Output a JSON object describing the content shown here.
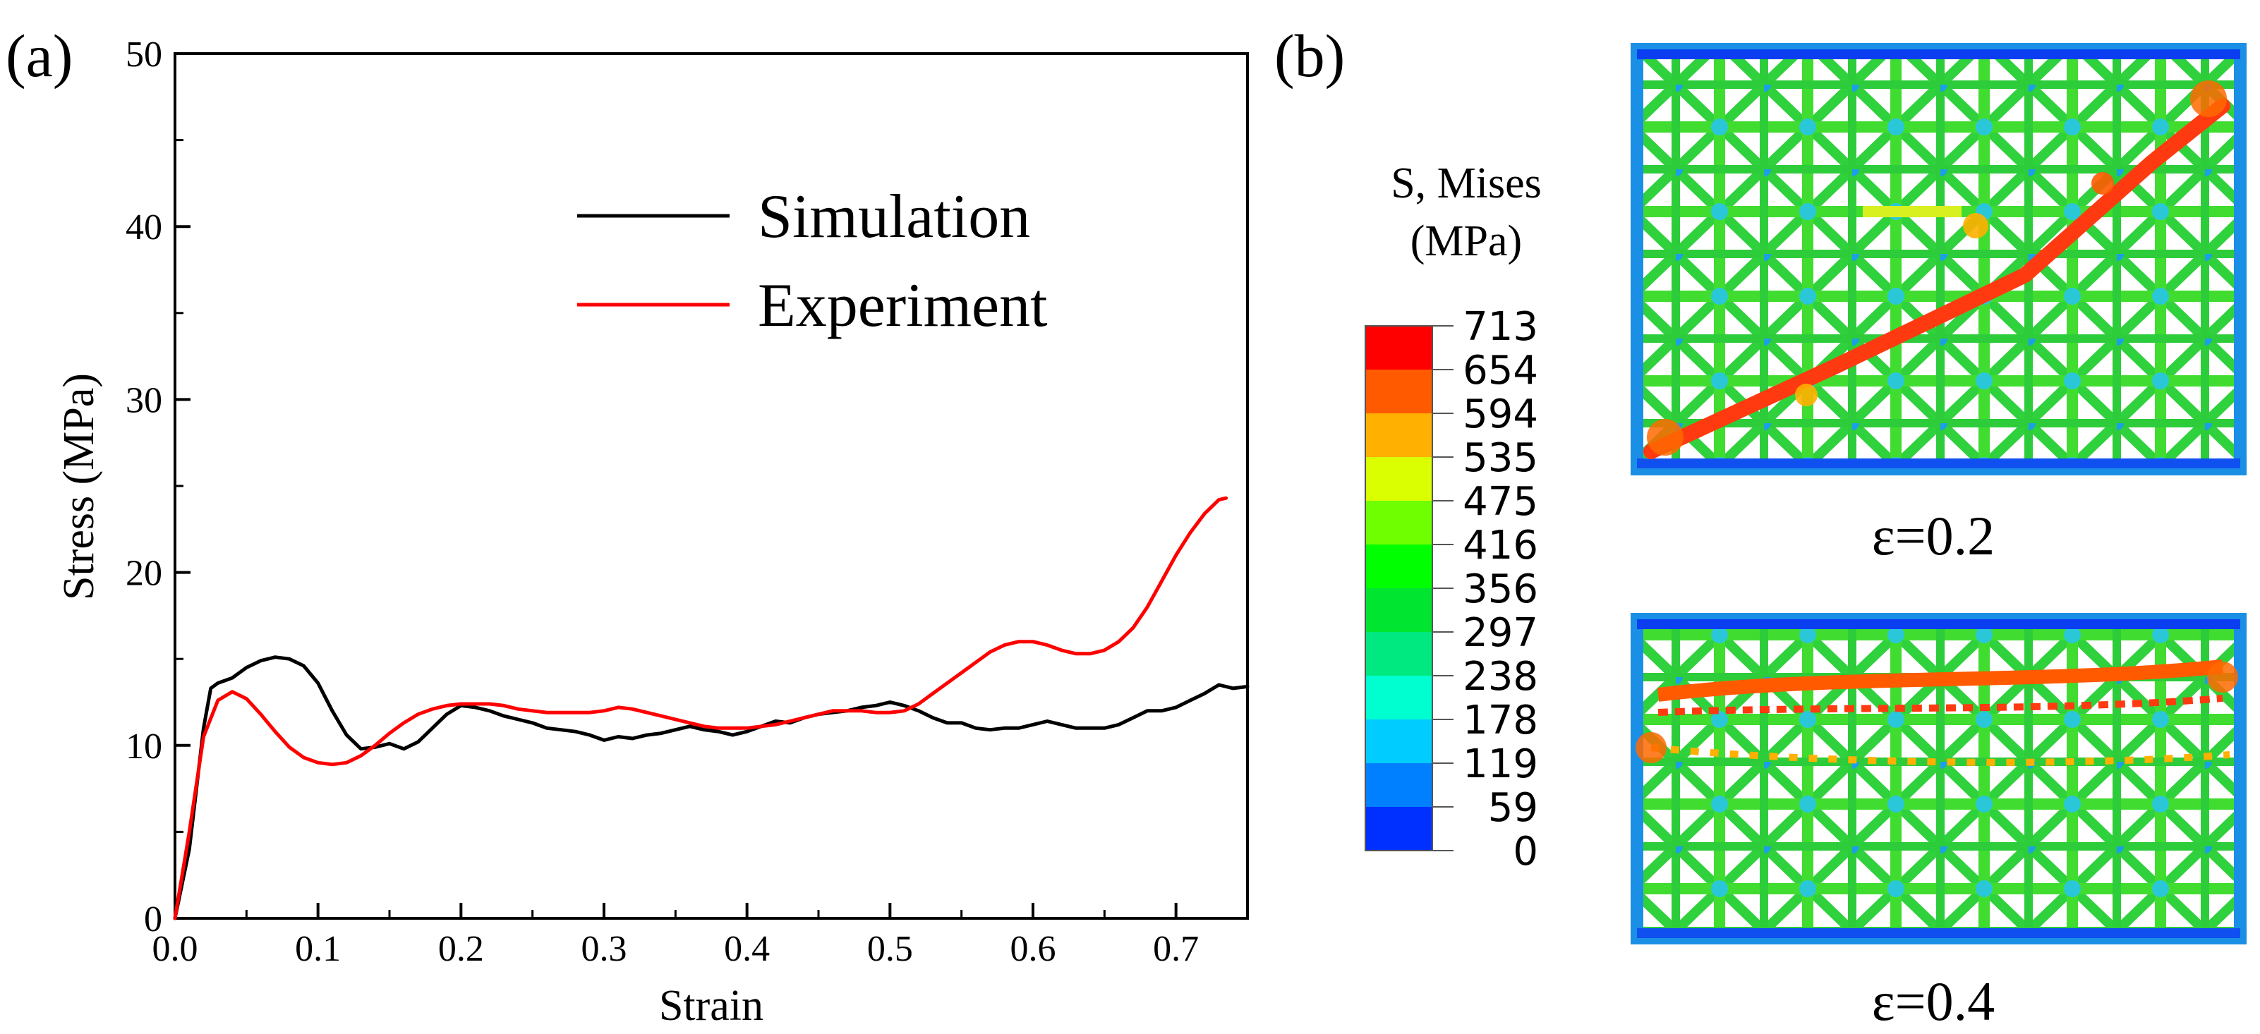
{
  "chart_data": {
    "type": "line",
    "panel_label": "(a)",
    "xlabel": "Strain",
    "ylabel": "Stress (MPa)",
    "xlim": [
      0.0,
      0.75
    ],
    "ylim": [
      0,
      50
    ],
    "x_ticks": [
      0.0,
      0.1,
      0.2,
      0.3,
      0.4,
      0.5,
      0.6,
      0.7
    ],
    "x_tick_labels": [
      "0.0",
      "0.1",
      "0.2",
      "0.3",
      "0.4",
      "0.5",
      "0.6",
      "0.7"
    ],
    "y_ticks": [
      0,
      10,
      20,
      30,
      40,
      50
    ],
    "y_tick_labels": [
      "0",
      "10",
      "20",
      "30",
      "40",
      "50"
    ],
    "grid": false,
    "legend_position": "top-right",
    "series": [
      {
        "name": "Simulation",
        "color": "#000000",
        "x": [
          0,
          0.01,
          0.02,
          0.025,
          0.03,
          0.04,
          0.05,
          0.06,
          0.07,
          0.08,
          0.09,
          0.1,
          0.11,
          0.12,
          0.13,
          0.14,
          0.15,
          0.16,
          0.17,
          0.18,
          0.19,
          0.2,
          0.21,
          0.22,
          0.23,
          0.24,
          0.25,
          0.26,
          0.27,
          0.28,
          0.29,
          0.3,
          0.31,
          0.32,
          0.33,
          0.34,
          0.35,
          0.36,
          0.37,
          0.38,
          0.39,
          0.4,
          0.41,
          0.42,
          0.43,
          0.44,
          0.45,
          0.46,
          0.47,
          0.48,
          0.49,
          0.5,
          0.51,
          0.52,
          0.53,
          0.54,
          0.55,
          0.56,
          0.57,
          0.58,
          0.59,
          0.6,
          0.61,
          0.62,
          0.63,
          0.64,
          0.65,
          0.66,
          0.67,
          0.68,
          0.69,
          0.7,
          0.71,
          0.72,
          0.73,
          0.74,
          0.75
        ],
        "y": [
          0,
          4,
          11,
          13.3,
          13.6,
          13.9,
          14.5,
          14.9,
          15.1,
          15.0,
          14.6,
          13.6,
          12.0,
          10.6,
          9.8,
          9.9,
          10.1,
          9.8,
          10.2,
          11.0,
          11.8,
          12.3,
          12.2,
          12.0,
          11.7,
          11.5,
          11.3,
          11.0,
          10.9,
          10.8,
          10.6,
          10.3,
          10.5,
          10.4,
          10.6,
          10.7,
          10.9,
          11.1,
          10.9,
          10.8,
          10.6,
          10.8,
          11.1,
          11.4,
          11.3,
          11.6,
          11.8,
          11.9,
          12.0,
          12.2,
          12.3,
          12.5,
          12.3,
          12.0,
          11.6,
          11.3,
          11.3,
          11.0,
          10.9,
          11.0,
          11.0,
          11.2,
          11.4,
          11.2,
          11.0,
          11.0,
          11.0,
          11.2,
          11.6,
          12.0,
          12.0,
          12.2,
          12.6,
          13.0,
          13.5,
          13.3,
          13.4
        ]
      },
      {
        "name": "Experiment",
        "color": "#ff0000",
        "x": [
          0,
          0.01,
          0.02,
          0.03,
          0.04,
          0.05,
          0.06,
          0.07,
          0.08,
          0.09,
          0.1,
          0.11,
          0.12,
          0.13,
          0.14,
          0.15,
          0.16,
          0.17,
          0.18,
          0.19,
          0.2,
          0.21,
          0.22,
          0.23,
          0.24,
          0.25,
          0.26,
          0.27,
          0.28,
          0.29,
          0.3,
          0.31,
          0.32,
          0.33,
          0.34,
          0.35,
          0.36,
          0.37,
          0.38,
          0.39,
          0.4,
          0.41,
          0.42,
          0.43,
          0.44,
          0.45,
          0.46,
          0.47,
          0.48,
          0.49,
          0.5,
          0.51,
          0.52,
          0.53,
          0.54,
          0.55,
          0.56,
          0.57,
          0.58,
          0.59,
          0.6,
          0.61,
          0.62,
          0.63,
          0.64,
          0.65,
          0.66,
          0.67,
          0.68,
          0.69,
          0.7,
          0.71,
          0.72,
          0.73,
          0.735
        ],
        "y": [
          0,
          5,
          10.5,
          12.6,
          13.1,
          12.7,
          11.8,
          10.8,
          9.9,
          9.3,
          9.0,
          8.9,
          9.0,
          9.4,
          10.0,
          10.7,
          11.3,
          11.8,
          12.1,
          12.3,
          12.4,
          12.4,
          12.4,
          12.3,
          12.1,
          12.0,
          11.9,
          11.9,
          11.9,
          11.9,
          12.0,
          12.2,
          12.1,
          11.9,
          11.7,
          11.5,
          11.3,
          11.1,
          11.0,
          11.0,
          11.0,
          11.1,
          11.2,
          11.4,
          11.6,
          11.8,
          12.0,
          12.0,
          12.0,
          11.9,
          11.9,
          12.0,
          12.4,
          13.0,
          13.6,
          14.2,
          14.8,
          15.4,
          15.8,
          16.0,
          16.0,
          15.8,
          15.5,
          15.3,
          15.3,
          15.5,
          16.0,
          16.8,
          18.0,
          19.5,
          21.0,
          22.3,
          23.4,
          24.2,
          24.3
        ]
      }
    ]
  },
  "panel_b": {
    "label": "(b)",
    "legend_title_line1": "S, Mises",
    "legend_title_line2": "(MPa)",
    "color_scale": {
      "labels": [
        "713",
        "654",
        "594",
        "535",
        "475",
        "416",
        "356",
        "297",
        "238",
        "178",
        "119",
        "59",
        "0"
      ],
      "colors": [
        "#ff0000",
        "#ff5a00",
        "#ffb000",
        "#d9ff00",
        "#70ff00",
        "#00ff00",
        "#00e630",
        "#00e880",
        "#00ffd0",
        "#00ccff",
        "#0080ff",
        "#0030ff",
        "#0000ff"
      ]
    },
    "images": [
      {
        "caption": "ε=0.2"
      },
      {
        "caption": "ε=0.4"
      }
    ]
  }
}
